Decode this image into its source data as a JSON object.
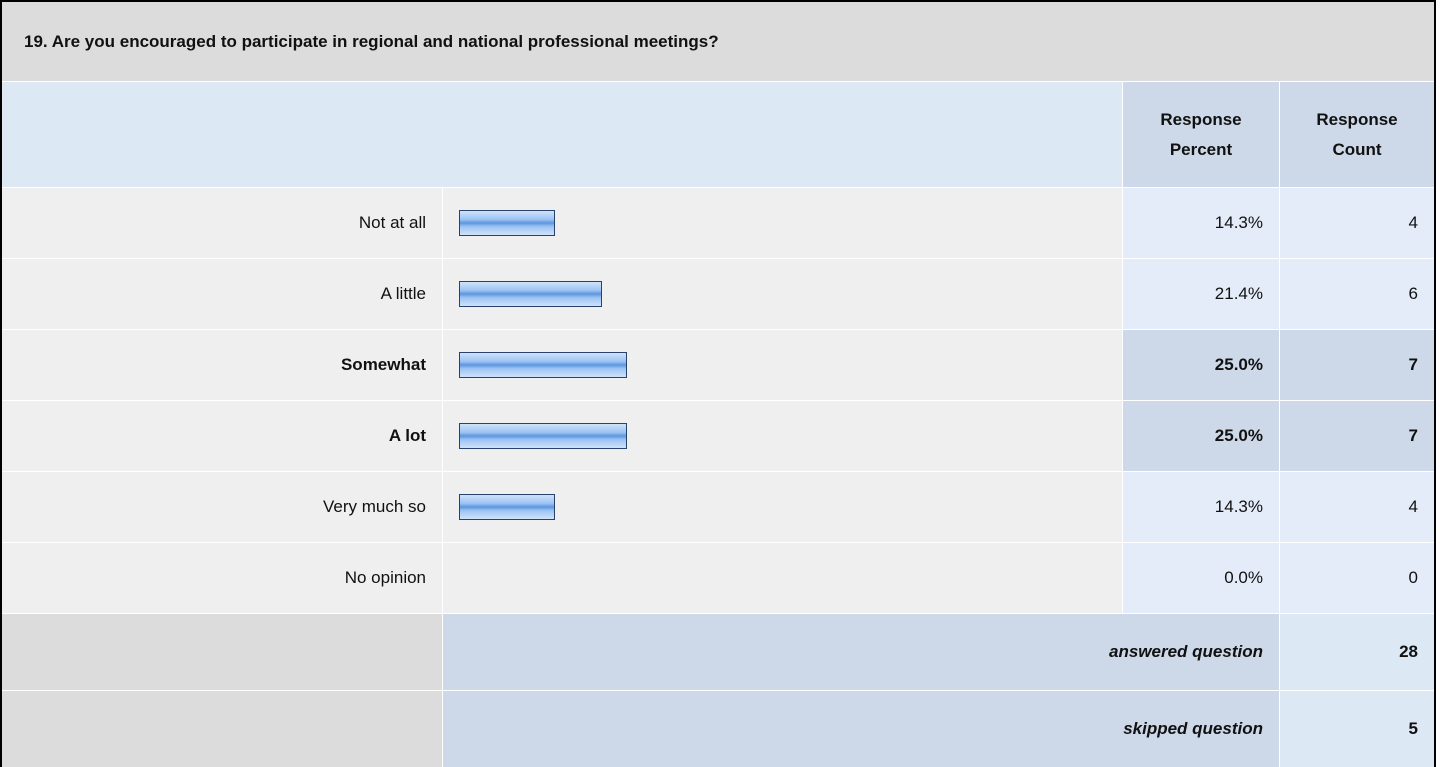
{
  "table": {
    "title": "19. Are you encouraged to participate in regional and national professional meetings?",
    "header": {
      "percent": "Response Percent",
      "count": "Response Count"
    },
    "rows": [
      {
        "label": "Not at all",
        "percent": 14.3,
        "percent_label": "14.3%",
        "count": 4
      },
      {
        "label": "A little",
        "percent": 21.4,
        "percent_label": "21.4%",
        "count": 6
      },
      {
        "label": "Somewhat",
        "percent": 25.0,
        "percent_label": "25.0%",
        "count": 7
      },
      {
        "label": "A lot",
        "percent": 25.0,
        "percent_label": "25.0%",
        "count": 7
      },
      {
        "label": "Very much so",
        "percent": 14.3,
        "percent_label": "14.3%",
        "count": 4
      },
      {
        "label": "No opinion",
        "percent": 0.0,
        "percent_label": "0.0%",
        "count": 0
      }
    ],
    "answered": {
      "label": "answered question",
      "count": 28
    },
    "skipped": {
      "label": "skipped question",
      "count": 5
    }
  }
}
